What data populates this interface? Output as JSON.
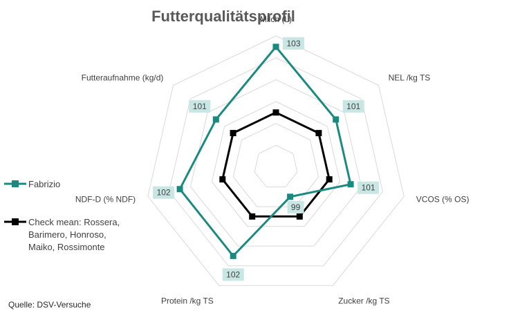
{
  "chart_data": {
    "type": "radar",
    "title": "Futterqualitätsprofil",
    "axes": [
      "Milch (L)",
      "NEL /kg TS",
      "VCOS (% OS)",
      "Zucker /kg TS",
      "Protein /kg TS",
      "NDF-D (% NDF)",
      "Futteraufnahme (kg/d)"
    ],
    "grid": true,
    "ring_levels": 6,
    "series": [
      {
        "name": "Fabrizio",
        "color": "#1a8a80",
        "values": [
          103,
          101,
          101,
          99,
          102,
          102,
          101
        ],
        "data_labels": [
          "103",
          "101",
          "101",
          "99",
          "102",
          "102",
          "101"
        ]
      },
      {
        "name": "Check mean: Rossera, Barimero, Honroso, Maiko, Rossimonte",
        "color": "#000000",
        "values": [
          100,
          100,
          100,
          100,
          100,
          100,
          100
        ]
      }
    ],
    "legend_position": "left"
  },
  "legend": {
    "items": [
      {
        "lines": [
          "Fabrizio"
        ]
      },
      {
        "lines": [
          "Check mean: Rossera,",
          "Barimero, Honroso,",
          "Maiko, Rossimonte"
        ]
      }
    ]
  },
  "source": "Quelle: DSV-Versuche"
}
